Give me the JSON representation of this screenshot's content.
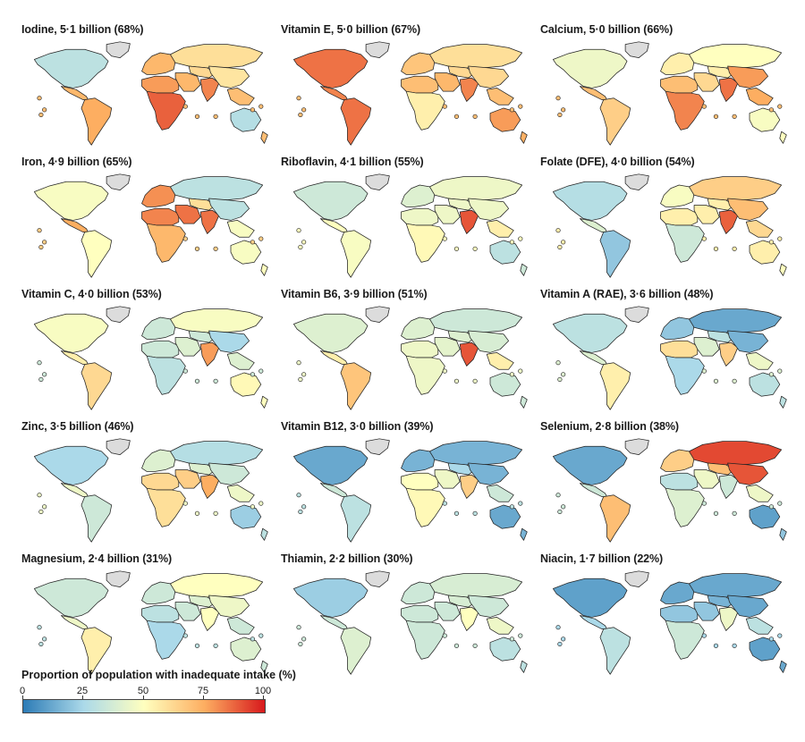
{
  "panels": [
    {
      "title": "Iodine, 5·1 billion (68%)",
      "regions": {
        "na": 30,
        "greenland": null,
        "ca": 72,
        "sa": 75,
        "eu": 72,
        "nafr": 78,
        "ssa": 88,
        "russia": 60,
        "me": 72,
        "cas": 62,
        "sas": 82,
        "eas": 58,
        "sea": 70,
        "aus": 28,
        "nz": 70,
        "islands": 70
      }
    },
    {
      "title": "Vitamin E, 5·0 billion (67%)",
      "regions": {
        "na": 85,
        "greenland": null,
        "ca": 82,
        "sa": 85,
        "eu": 68,
        "nafr": 70,
        "ssa": 55,
        "russia": 60,
        "me": 72,
        "cas": 62,
        "sas": 82,
        "eas": 62,
        "sea": 70,
        "aus": 78,
        "nz": 74,
        "islands": 70
      }
    },
    {
      "title": "Calcium, 5·0 billion (66%)",
      "regions": {
        "na": 45,
        "greenland": null,
        "ca": 70,
        "sa": 65,
        "eu": 55,
        "nafr": 70,
        "ssa": 82,
        "russia": 50,
        "me": 62,
        "cas": 55,
        "sas": 85,
        "eas": 78,
        "sea": 75,
        "aus": 48,
        "nz": 50,
        "islands": 70
      }
    },
    {
      "title": "Iron, 4·9 billion (65%)",
      "regions": {
        "na": 48,
        "greenland": null,
        "ca": 75,
        "sa": 50,
        "eu": 80,
        "nafr": 82,
        "ssa": 72,
        "russia": 30,
        "me": 85,
        "cas": 60,
        "sas": 85,
        "eas": 30,
        "sea": 48,
        "aus": 48,
        "nz": 50,
        "islands": 65
      }
    },
    {
      "title": "Riboflavin, 4·1 billion (55%)",
      "regions": {
        "na": 35,
        "greenland": null,
        "ca": 50,
        "sa": 48,
        "eu": 40,
        "nafr": 45,
        "ssa": 52,
        "russia": 45,
        "me": 45,
        "cas": 45,
        "sas": 90,
        "eas": 45,
        "sea": 55,
        "aus": 30,
        "nz": 35,
        "islands": 50
      }
    },
    {
      "title": "Folate (DFE), 4·0 billion (54%)",
      "regions": {
        "na": 28,
        "greenland": null,
        "ca": 40,
        "sa": 20,
        "eu": 48,
        "nafr": 55,
        "ssa": 35,
        "russia": 65,
        "me": 55,
        "cas": 55,
        "sas": 88,
        "eas": 70,
        "sea": 62,
        "aus": 55,
        "nz": 50,
        "islands": 55
      }
    },
    {
      "title": "Vitamin C, 4·0 billion (53%)",
      "regions": {
        "na": 48,
        "greenland": null,
        "ca": 55,
        "sa": 62,
        "eu": 35,
        "nafr": 35,
        "ssa": 30,
        "russia": 48,
        "me": 40,
        "cas": 35,
        "sas": 78,
        "eas": 25,
        "sea": 40,
        "aus": 52,
        "nz": 50,
        "islands": 35
      }
    },
    {
      "title": "Vitamin B6, 3·9 billion (51%)",
      "regions": {
        "na": 40,
        "greenland": null,
        "ca": 55,
        "sa": 68,
        "eu": 40,
        "nafr": 45,
        "ssa": 45,
        "russia": 35,
        "me": 42,
        "cas": 40,
        "sas": 90,
        "eas": 38,
        "sea": 55,
        "aus": 35,
        "nz": 35,
        "islands": 45
      }
    },
    {
      "title": "Vitamin A (RAE), 3·6 billion (48%)",
      "regions": {
        "na": 30,
        "greenland": null,
        "ca": 40,
        "sa": 55,
        "eu": 20,
        "nafr": 60,
        "ssa": 25,
        "russia": 12,
        "me": 40,
        "cas": 30,
        "sas": 65,
        "eas": 15,
        "sea": 45,
        "aus": 30,
        "nz": 30,
        "islands": 40
      }
    },
    {
      "title": "Zinc, 3·5 billion (46%)",
      "regions": {
        "na": 25,
        "greenland": null,
        "ca": 45,
        "sa": 35,
        "eu": 40,
        "nafr": 62,
        "ssa": 60,
        "russia": 28,
        "me": 65,
        "cas": 40,
        "sas": 75,
        "eas": 35,
        "sea": 45,
        "aus": 22,
        "nz": 30,
        "islands": 45
      }
    },
    {
      "title": "Vitamin B12, 3·0 billion (39%)",
      "regions": {
        "na": 12,
        "greenland": null,
        "ca": 35,
        "sa": 30,
        "eu": 15,
        "nafr": 50,
        "ssa": 52,
        "russia": 15,
        "me": 45,
        "cas": 25,
        "sas": 65,
        "eas": 15,
        "sea": 35,
        "aus": 12,
        "nz": 15,
        "islands": 30
      }
    },
    {
      "title": "Selenium, 2·8 billion (38%)",
      "regions": {
        "na": 12,
        "greenland": null,
        "ca": 35,
        "sa": 70,
        "eu": 65,
        "nafr": 30,
        "ssa": 40,
        "russia": 92,
        "me": 45,
        "cas": 70,
        "sas": 35,
        "eas": 90,
        "sea": 45,
        "aus": 10,
        "nz": 20,
        "islands": 35
      }
    },
    {
      "title": "Magnesium, 2·4 billion (31%)",
      "regions": {
        "na": 35,
        "greenland": null,
        "ca": 45,
        "sa": 55,
        "eu": 35,
        "nafr": 30,
        "ssa": 25,
        "russia": 50,
        "me": 35,
        "cas": 40,
        "sas": 50,
        "eas": 45,
        "sea": 35,
        "aus": 40,
        "nz": 35,
        "islands": 30
      }
    },
    {
      "title": "Thiamin, 2·2 billion (30%)",
      "regions": {
        "na": 22,
        "greenland": null,
        "ca": 35,
        "sa": 40,
        "eu": 35,
        "nafr": 35,
        "ssa": 35,
        "russia": 38,
        "me": 35,
        "cas": 38,
        "sas": 50,
        "eas": 35,
        "sea": 45,
        "aus": 30,
        "nz": 30,
        "islands": 35
      }
    },
    {
      "title": "Niacin, 1·7 billion (22%)",
      "regions": {
        "na": 10,
        "greenland": null,
        "ca": 25,
        "sa": 30,
        "eu": 12,
        "nafr": 20,
        "ssa": 35,
        "russia": 12,
        "me": 20,
        "cas": 15,
        "sas": 45,
        "eas": 12,
        "sea": 30,
        "aus": 10,
        "nz": 12,
        "islands": 25
      }
    }
  ],
  "legend": {
    "title": "Proportion of population with inadequate intake (%)",
    "ticks": [
      "0",
      "25",
      "50",
      "75",
      "100"
    ],
    "colors": [
      "#2c7bb6",
      "#abd9e9",
      "#ffffbf",
      "#fdae61",
      "#d7191c"
    ]
  },
  "no_data_color": "#dcdcdc"
}
